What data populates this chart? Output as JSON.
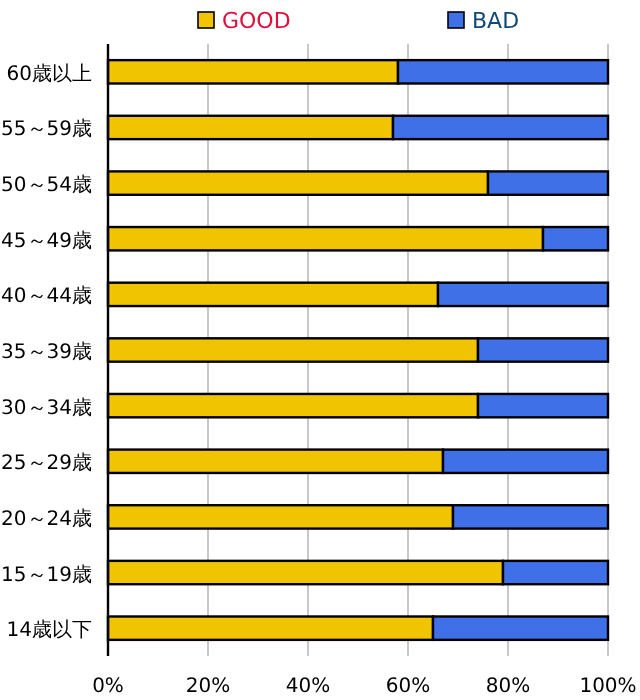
{
  "chart_data": {
    "type": "bar",
    "orientation": "horizontal",
    "stacked": true,
    "categories": [
      "60歳以上",
      "55～59歳",
      "50～54歳",
      "45～49歳",
      "40～44歳",
      "35～39歳",
      "30～34歳",
      "25～29歳",
      "20～24歳",
      "15～19歳",
      "14歳以下"
    ],
    "series": [
      {
        "name": "GOOD",
        "color": "#f0c400",
        "values": [
          58,
          57,
          76,
          87,
          66,
          74,
          74,
          67,
          69,
          79,
          65
        ]
      },
      {
        "name": "BAD",
        "color": "#4070e8",
        "values": [
          42,
          43,
          24,
          13,
          34,
          26,
          26,
          33,
          31,
          21,
          35
        ]
      }
    ],
    "xlim": [
      0,
      100
    ],
    "xticks": [
      {
        "value": 0,
        "label": "0%"
      },
      {
        "value": 20,
        "label": "20%"
      },
      {
        "value": 40,
        "label": "40%"
      },
      {
        "value": 60,
        "label": "60%"
      },
      {
        "value": 80,
        "label": "80%"
      },
      {
        "value": 100,
        "label": "100%"
      }
    ],
    "grid": "x",
    "legend": "top"
  }
}
